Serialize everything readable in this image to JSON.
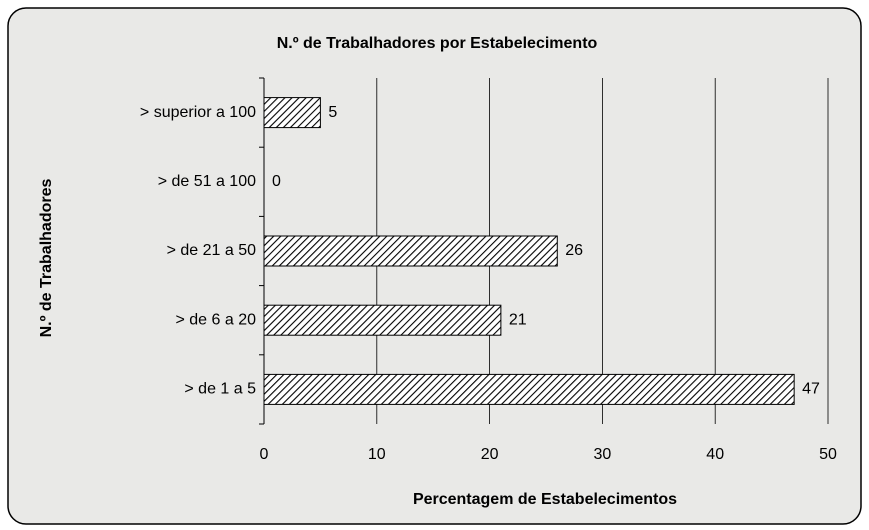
{
  "chart_data": {
    "type": "hbar",
    "title": "N.º de Trabalhadores por Estabelecimento",
    "x_label": "Percentagem de Estabelecimentos",
    "y_label": "N.º de Trabalhadores",
    "categories": [
      "> superior a 100",
      "> de 51 a 100",
      "> de 21 a 50",
      "> de 6 a 20",
      "> de 1 a 5"
    ],
    "values": [
      5,
      0,
      26,
      21,
      47
    ],
    "color": "#000000",
    "xlim": [
      0,
      50
    ],
    "xticks": [
      0,
      10,
      20,
      30,
      40,
      50
    ],
    "grid": true
  }
}
